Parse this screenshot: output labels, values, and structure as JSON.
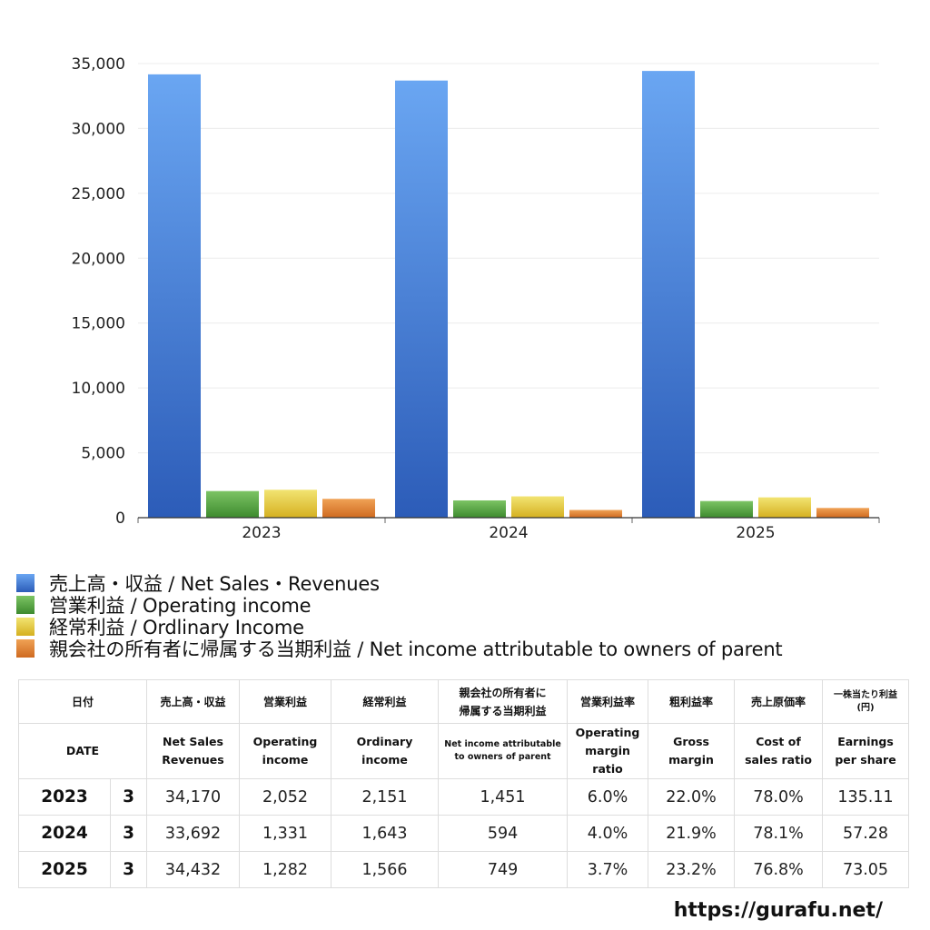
{
  "chart_data": {
    "type": "bar",
    "categories": [
      "2023",
      "2024",
      "2025"
    ],
    "ylim": [
      0,
      35000
    ],
    "yticks": [
      "0",
      "5,000",
      "10,000",
      "15,000",
      "20,000",
      "25,000",
      "30,000",
      "35,000"
    ],
    "ytick_values": [
      0,
      5000,
      10000,
      15000,
      20000,
      25000,
      30000,
      35000
    ],
    "grid": true,
    "legend_position": "bottom-left",
    "series": [
      {
        "name": "売上高・収益 / Net Sales・Revenues",
        "values": [
          34170,
          33692,
          34432
        ],
        "color": "#3c74cf",
        "color_light": "#6aa6f2",
        "color_dark": "#2c5cb8"
      },
      {
        "name": "営業利益 / Operating income",
        "values": [
          2052,
          1331,
          1282
        ],
        "color": "#4f9d3b",
        "color_light": "#7cc464",
        "color_dark": "#3d8a2e"
      },
      {
        "name": "経常利益 / Ordlinary Income",
        "values": [
          2151,
          1643,
          1566
        ],
        "color": "#e3c22a",
        "color_light": "#f2e472",
        "color_dark": "#d5b020"
      },
      {
        "name": "親会社の所有者に帰属する当期利益 / Net income attributable to owners of parent",
        "values": [
          1451,
          594,
          749
        ],
        "color": "#de7a2c",
        "color_light": "#f0a255",
        "color_dark": "#cf6a20"
      }
    ]
  },
  "table": {
    "header_jp": {
      "date": "日付",
      "sales": "売上高・収益",
      "op": "営業利益",
      "ord": "経常利益",
      "net_l1": "親会社の所有者に",
      "net_l2": "帰属する当期利益",
      "opm": "営業利益率",
      "gm": "粗利益率",
      "cos": "売上原価率",
      "eps_l1": "一株当たり利益",
      "eps_l2": "(円)"
    },
    "header_en": {
      "date": "DATE",
      "sales_l1": "Net Sales",
      "sales_l2": "Revenues",
      "op_l1": "Operating",
      "op_l2": "income",
      "ord_l1": "Ordinary",
      "ord_l2": "income",
      "net_l1": "Net income attributable",
      "net_l2": "to owners of parent",
      "opm_l1": "Operating",
      "opm_l2": "margin",
      "opm_l3": "ratio",
      "gm_l1": "Gross",
      "gm_l2": "margin",
      "cos_l1": "Cost of",
      "cos_l2": "sales ratio",
      "eps_l1": "Earnings",
      "eps_l2": "per share"
    },
    "rows": [
      {
        "year": "2023",
        "month": "3",
        "sales": "34,170",
        "op": "2,052",
        "ord": "2,151",
        "net": "1,451",
        "opm": "6.0%",
        "gm": "22.0%",
        "cos": "78.0%",
        "eps": "135.11"
      },
      {
        "year": "2024",
        "month": "3",
        "sales": "33,692",
        "op": "1,331",
        "ord": "1,643",
        "net": "594",
        "opm": "4.0%",
        "gm": "21.9%",
        "cos": "78.1%",
        "eps": "57.28"
      },
      {
        "year": "2025",
        "month": "3",
        "sales": "34,432",
        "op": "1,282",
        "ord": "1,566",
        "net": "749",
        "opm": "3.7%",
        "gm": "23.2%",
        "cos": "76.8%",
        "eps": "73.05"
      }
    ]
  },
  "footer": {
    "url": "https://gurafu.net/"
  }
}
